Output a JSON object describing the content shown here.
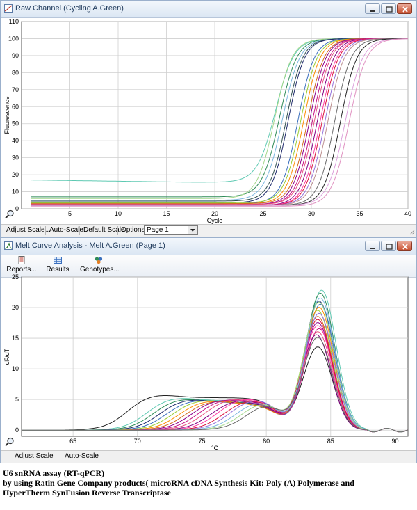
{
  "raw_window": {
    "title": "Raw Channel (Cycling A.Green)",
    "status": {
      "adjust_scale": "Adjust Scale...",
      "auto_scale": "Auto-Scale",
      "default_scale": "Default Scale",
      "options": "Options",
      "page_select": "Page 1"
    }
  },
  "melt_window": {
    "title": "Melt Curve Analysis - Melt A.Green (Page 1)",
    "toolbar": {
      "reports": "Reports...",
      "results": "Results",
      "genotypes": "Genotypes..."
    },
    "status": {
      "adjust_scale": "Adjust Scale",
      "auto_scale": "Auto-Scale"
    }
  },
  "caption": {
    "line1": "U6 snRNA assay (RT-qPCR)",
    "line2": "by using Ratin Gene Company products( microRNA cDNA Synthesis Kit: Poly (A) Polymerase and",
    "line3": "HyperTherm SynFusion Reverse Transcriptase"
  },
  "colors": {
    "titlebar": "#dbe6f3",
    "close_button": "#c7502f",
    "statusbar": "#f0f0f0"
  },
  "chart_data": [
    {
      "type": "line",
      "title": "",
      "xlabel": "Cycle",
      "ylabel": "Fluorescence",
      "xlim": [
        0,
        40
      ],
      "ylim": [
        0,
        110
      ],
      "xticks": [
        5,
        10,
        15,
        20,
        25,
        30,
        35,
        40
      ],
      "yticks": [
        0,
        10,
        20,
        30,
        40,
        50,
        60,
        70,
        80,
        90,
        100,
        110
      ],
      "grid": true,
      "model": "sigmoid: y = baseline + (plateau - baseline) / (1 + exp(-(cycle - midpoint) / slope))",
      "series": [
        {
          "color": "#5ec9b2",
          "baseline": 17.0,
          "midpoint": 26.3,
          "slope": 0.95,
          "plateau": 100
        },
        {
          "color": "#2e8b57",
          "baseline": 7.0,
          "midpoint": 26.7,
          "slope": 0.9,
          "plateau": 100
        },
        {
          "color": "#a4d88c",
          "baseline": 6.0,
          "midpoint": 26.2,
          "slope": 0.9,
          "plateau": 100
        },
        {
          "color": "#7fb8e0",
          "baseline": 5.0,
          "midpoint": 27.0,
          "slope": 0.9,
          "plateau": 100
        },
        {
          "color": "#2f4f4f",
          "baseline": 4.5,
          "midpoint": 27.4,
          "slope": 0.85,
          "plateau": 100
        },
        {
          "color": "#1f2a6b",
          "baseline": 3.5,
          "midpoint": 27.6,
          "slope": 0.85,
          "plateau": 100
        },
        {
          "color": "#3a6fbd",
          "baseline": 3.0,
          "midpoint": 28.6,
          "slope": 0.85,
          "plateau": 100
        },
        {
          "color": "#9acd32",
          "baseline": 3.5,
          "midpoint": 28.9,
          "slope": 0.85,
          "plateau": 100
        },
        {
          "color": "#ff8c00",
          "baseline": 3.0,
          "midpoint": 29.2,
          "slope": 0.85,
          "plateau": 100
        },
        {
          "color": "#d2691e",
          "baseline": 3.0,
          "midpoint": 29.6,
          "slope": 0.85,
          "plateau": 100
        },
        {
          "color": "#8b008b",
          "baseline": 2.5,
          "midpoint": 29.8,
          "slope": 0.85,
          "plateau": 100
        },
        {
          "color": "#c71585",
          "baseline": 2.5,
          "midpoint": 30.1,
          "slope": 0.85,
          "plateau": 100
        },
        {
          "color": "#e75480",
          "baseline": 2.5,
          "midpoint": 30.3,
          "slope": 0.85,
          "plateau": 100
        },
        {
          "color": "#800080",
          "baseline": 2.0,
          "midpoint": 30.6,
          "slope": 0.85,
          "plateau": 100
        },
        {
          "color": "#ff3fa4",
          "baseline": 2.0,
          "midpoint": 30.9,
          "slope": 0.85,
          "plateau": 100
        },
        {
          "color": "#dc143c",
          "baseline": 2.0,
          "midpoint": 31.1,
          "slope": 0.85,
          "plateau": 100
        },
        {
          "color": "#9370db",
          "baseline": 2.0,
          "midpoint": 31.4,
          "slope": 0.85,
          "plateau": 100
        },
        {
          "color": "#bc8f8f",
          "baseline": 2.0,
          "midpoint": 31.7,
          "slope": 0.85,
          "plateau": 100
        },
        {
          "color": "#696969",
          "baseline": 2.0,
          "midpoint": 32.4,
          "slope": 0.85,
          "plateau": 100
        },
        {
          "color": "#222222",
          "baseline": 2.0,
          "midpoint": 33.0,
          "slope": 0.85,
          "plateau": 100
        },
        {
          "color": "#dda0dd",
          "baseline": 2.0,
          "midpoint": 33.5,
          "slope": 0.9,
          "plateau": 100
        },
        {
          "color": "#e090c0",
          "baseline": 1.5,
          "midpoint": 33.9,
          "slope": 0.9,
          "plateau": 100
        }
      ]
    },
    {
      "type": "line",
      "title": "",
      "xlabel": "°C",
      "ylabel": "dF/dT",
      "xlim": [
        61,
        91
      ],
      "ylim": [
        -1,
        25
      ],
      "xticks": [
        65,
        70,
        75,
        80,
        85,
        90
      ],
      "yticks": [
        0,
        5,
        10,
        15,
        20,
        25
      ],
      "grid": true,
      "model": "melt peak at ~84 °C preceded by a primer-dimer shoulder",
      "series": [
        {
          "color": "#222222",
          "shoulder_start": 67.5,
          "shoulder_height": 5.3,
          "peak_center": 84.0,
          "peak_height": 13.5
        },
        {
          "color": "#5ec9b2",
          "shoulder_start": 69.0,
          "shoulder_height": 4.8,
          "peak_center": 84.3,
          "peak_height": 22.8
        },
        {
          "color": "#2e8b57",
          "shoulder_start": 69.5,
          "shoulder_height": 4.6,
          "peak_center": 84.2,
          "peak_height": 22.3
        },
        {
          "color": "#1f2a6b",
          "shoulder_start": 70.0,
          "shoulder_height": 4.5,
          "peak_center": 84.1,
          "peak_height": 21.0
        },
        {
          "color": "#3a6fbd",
          "shoulder_start": 70.5,
          "shoulder_height": 4.4,
          "peak_center": 84.2,
          "peak_height": 20.5
        },
        {
          "color": "#9acd32",
          "shoulder_start": 71.0,
          "shoulder_height": 4.4,
          "peak_center": 84.0,
          "peak_height": 19.5
        },
        {
          "color": "#ff8c00",
          "shoulder_start": 71.5,
          "shoulder_height": 4.3,
          "peak_center": 84.1,
          "peak_height": 20.0
        },
        {
          "color": "#d2691e",
          "shoulder_start": 72.0,
          "shoulder_height": 4.3,
          "peak_center": 84.0,
          "peak_height": 18.5
        },
        {
          "color": "#8b008b",
          "shoulder_start": 72.5,
          "shoulder_height": 4.5,
          "peak_center": 84.0,
          "peak_height": 17.5
        },
        {
          "color": "#c71585",
          "shoulder_start": 73.0,
          "shoulder_height": 4.6,
          "peak_center": 84.1,
          "peak_height": 16.5
        },
        {
          "color": "#e75480",
          "shoulder_start": 73.5,
          "shoulder_height": 4.7,
          "peak_center": 84.0,
          "peak_height": 16.0
        },
        {
          "color": "#800080",
          "shoulder_start": 74.0,
          "shoulder_height": 4.5,
          "peak_center": 83.9,
          "peak_height": 15.5
        },
        {
          "color": "#ff3fa4",
          "shoulder_start": 74.5,
          "shoulder_height": 4.8,
          "peak_center": 84.0,
          "peak_height": 17.0
        },
        {
          "color": "#dc143c",
          "shoulder_start": 75.0,
          "shoulder_height": 4.6,
          "peak_center": 84.0,
          "peak_height": 18.0
        },
        {
          "color": "#9370db",
          "shoulder_start": 75.5,
          "shoulder_height": 4.9,
          "peak_center": 84.1,
          "peak_height": 19.0
        },
        {
          "color": "#7fb8e0",
          "shoulder_start": 76.0,
          "shoulder_height": 4.7,
          "peak_center": 84.2,
          "peak_height": 21.5
        },
        {
          "color": "#a4d88c",
          "shoulder_start": 76.5,
          "shoulder_height": 4.8,
          "peak_center": 84.1,
          "peak_height": 20.8
        },
        {
          "color": "#696969",
          "shoulder_start": 77.0,
          "shoulder_height": 4.9,
          "peak_center": 84.0,
          "peak_height": 15.0
        }
      ]
    }
  ]
}
